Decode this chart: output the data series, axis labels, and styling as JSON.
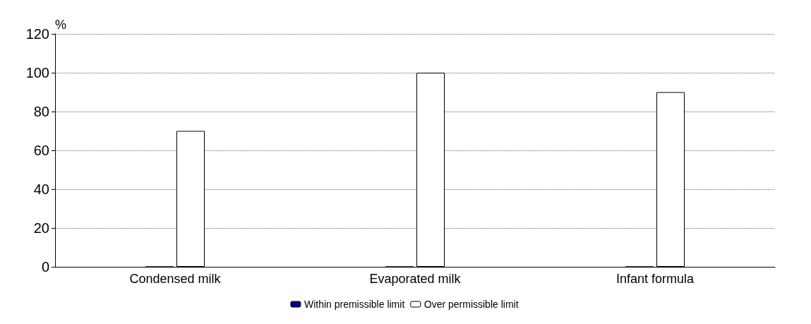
{
  "chart_data": {
    "type": "bar",
    "ylabel": "%",
    "categories": [
      "Condensed milk",
      "Evaporated milk",
      "Infant formula"
    ],
    "series": [
      {
        "name": "Within premissible limit",
        "color": "#000080",
        "values": [
          0,
          0,
          0
        ]
      },
      {
        "name": "Over permissible limit",
        "color": "#ffffff",
        "values": [
          70,
          100,
          90
        ]
      }
    ],
    "ylim": [
      0,
      120
    ],
    "yticks": [
      0,
      20,
      40,
      60,
      80,
      100,
      120
    ],
    "grid": "y",
    "legend": "bottom"
  }
}
